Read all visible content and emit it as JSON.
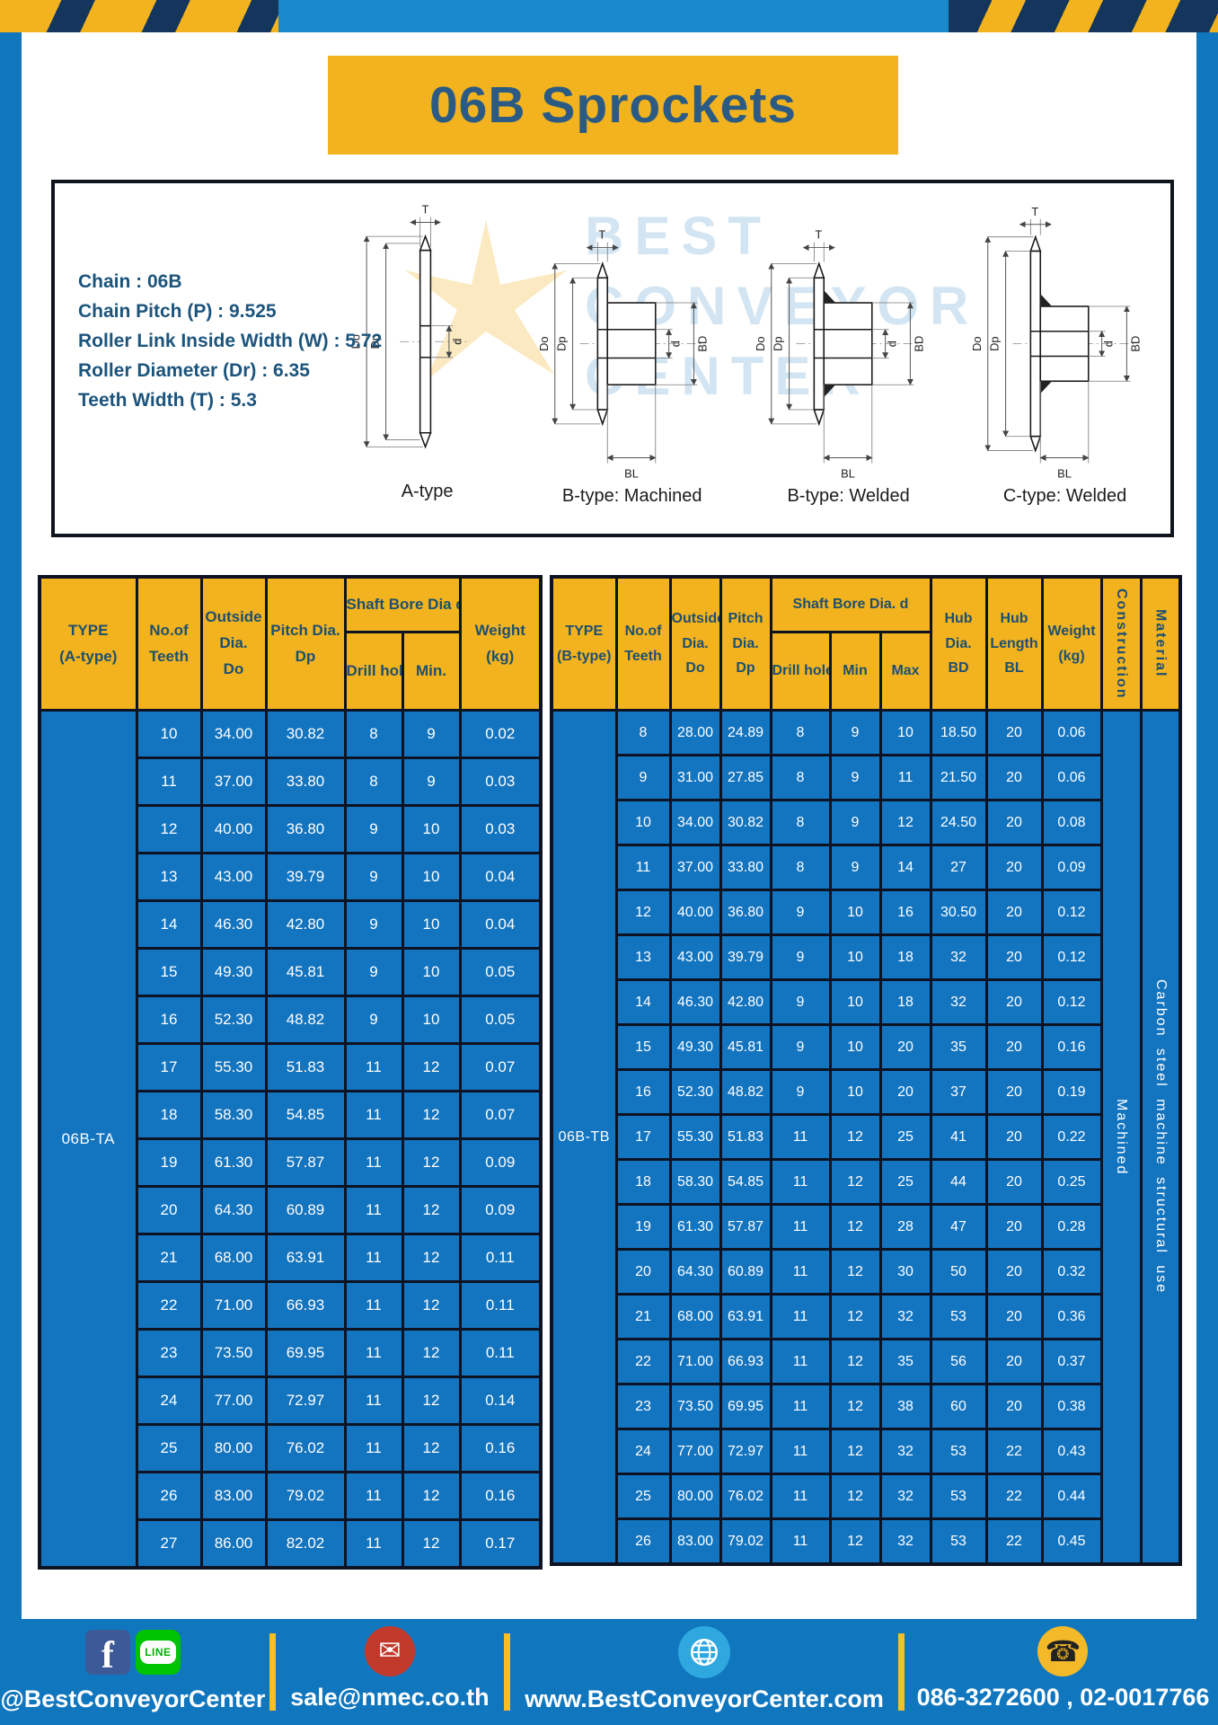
{
  "banner": {
    "title": "06B Sprockets"
  },
  "specs": {
    "lines": [
      "Chain  : 06B",
      "Chain Pitch (P)  :  9.525",
      "Roller Link Inside Width (W)  :  5.72",
      "Roller Diameter (Dr)  :  6.35",
      "Teeth Width (T)  :  5.3"
    ]
  },
  "drawings": {
    "captions": [
      "A-type",
      "B-type: Machined",
      "B-type: Welded",
      "C-type: Welded"
    ],
    "dims": {
      "t": "T",
      "do": "Do",
      "dp": "Dp",
      "d": "d",
      "bd": "BD",
      "bl": "BL"
    },
    "watermark_lines": [
      "BEST",
      "CONVEYOR",
      "CENTER"
    ]
  },
  "table_a": {
    "type_label": "06B-TA",
    "header": {
      "type": [
        "TYPE",
        "(A-type)"
      ],
      "teeth": [
        "No.of",
        "Teeth"
      ],
      "outside": [
        "Outside",
        "Dia.",
        "Do"
      ],
      "pitch": [
        "Pitch Dia.",
        "Dp"
      ],
      "bore_group": "Shaft Bore Dia d",
      "bore_cols": [
        "Drill hole",
        "Min."
      ],
      "weight": [
        "Weight",
        "(kg)"
      ]
    },
    "rows": [
      [
        "10",
        "34.00",
        "30.82",
        "8",
        "9",
        "0.02"
      ],
      [
        "11",
        "37.00",
        "33.80",
        "8",
        "9",
        "0.03"
      ],
      [
        "12",
        "40.00",
        "36.80",
        "9",
        "10",
        "0.03"
      ],
      [
        "13",
        "43.00",
        "39.79",
        "9",
        "10",
        "0.04"
      ],
      [
        "14",
        "46.30",
        "42.80",
        "9",
        "10",
        "0.04"
      ],
      [
        "15",
        "49.30",
        "45.81",
        "9",
        "10",
        "0.05"
      ],
      [
        "16",
        "52.30",
        "48.82",
        "9",
        "10",
        "0.05"
      ],
      [
        "17",
        "55.30",
        "51.83",
        "11",
        "12",
        "0.07"
      ],
      [
        "18",
        "58.30",
        "54.85",
        "11",
        "12",
        "0.07"
      ],
      [
        "19",
        "61.30",
        "57.87",
        "11",
        "12",
        "0.09"
      ],
      [
        "20",
        "64.30",
        "60.89",
        "11",
        "12",
        "0.09"
      ],
      [
        "21",
        "68.00",
        "63.91",
        "11",
        "12",
        "0.11"
      ],
      [
        "22",
        "71.00",
        "66.93",
        "11",
        "12",
        "0.11"
      ],
      [
        "23",
        "73.50",
        "69.95",
        "11",
        "12",
        "0.11"
      ],
      [
        "24",
        "77.00",
        "72.97",
        "11",
        "12",
        "0.14"
      ],
      [
        "25",
        "80.00",
        "76.02",
        "11",
        "12",
        "0.16"
      ],
      [
        "26",
        "83.00",
        "79.02",
        "11",
        "12",
        "0.16"
      ],
      [
        "27",
        "86.00",
        "82.02",
        "11",
        "12",
        "0.17"
      ]
    ]
  },
  "table_b": {
    "type_label": "06B-TB",
    "header": {
      "type": [
        "TYPE",
        "(B-type)"
      ],
      "teeth": [
        "No.of",
        "Teeth"
      ],
      "outside": [
        "Outside",
        "Dia.",
        "Do"
      ],
      "pitch": [
        "Pitch",
        "Dia.",
        "Dp"
      ],
      "bore_group": "Shaft Bore Dia.  d",
      "bore_cols": [
        "Drill hole",
        "Min",
        "Max"
      ],
      "hub_dia": [
        "Hub",
        "Dia.",
        "BD"
      ],
      "hub_len": [
        "Hub",
        "Length",
        "BL"
      ],
      "weight": [
        "Weight",
        "(kg)"
      ],
      "construction": "Construction",
      "material": "Material"
    },
    "rows": [
      [
        "8",
        "28.00",
        "24.89",
        "8",
        "9",
        "10",
        "18.50",
        "20",
        "0.06"
      ],
      [
        "9",
        "31.00",
        "27.85",
        "8",
        "9",
        "11",
        "21.50",
        "20",
        "0.06"
      ],
      [
        "10",
        "34.00",
        "30.82",
        "8",
        "9",
        "12",
        "24.50",
        "20",
        "0.08"
      ],
      [
        "11",
        "37.00",
        "33.80",
        "8",
        "9",
        "14",
        "27",
        "20",
        "0.09"
      ],
      [
        "12",
        "40.00",
        "36.80",
        "9",
        "10",
        "16",
        "30.50",
        "20",
        "0.12"
      ],
      [
        "13",
        "43.00",
        "39.79",
        "9",
        "10",
        "18",
        "32",
        "20",
        "0.12"
      ],
      [
        "14",
        "46.30",
        "42.80",
        "9",
        "10",
        "18",
        "32",
        "20",
        "0.12"
      ],
      [
        "15",
        "49.30",
        "45.81",
        "9",
        "10",
        "20",
        "35",
        "20",
        "0.16"
      ],
      [
        "16",
        "52.30",
        "48.82",
        "9",
        "10",
        "20",
        "37",
        "20",
        "0.19"
      ],
      [
        "17",
        "55.30",
        "51.83",
        "11",
        "12",
        "25",
        "41",
        "20",
        "0.22"
      ],
      [
        "18",
        "58.30",
        "54.85",
        "11",
        "12",
        "25",
        "44",
        "20",
        "0.25"
      ],
      [
        "19",
        "61.30",
        "57.87",
        "11",
        "12",
        "28",
        "47",
        "20",
        "0.28"
      ],
      [
        "20",
        "64.30",
        "60.89",
        "11",
        "12",
        "30",
        "50",
        "20",
        "0.32"
      ],
      [
        "21",
        "68.00",
        "63.91",
        "11",
        "12",
        "32",
        "53",
        "20",
        "0.36"
      ],
      [
        "22",
        "71.00",
        "66.93",
        "11",
        "12",
        "35",
        "56",
        "20",
        "0.37"
      ],
      [
        "23",
        "73.50",
        "69.95",
        "11",
        "12",
        "38",
        "60",
        "20",
        "0.38"
      ],
      [
        "24",
        "77.00",
        "72.97",
        "11",
        "12",
        "32",
        "53",
        "22",
        "0.43"
      ],
      [
        "25",
        "80.00",
        "76.02",
        "11",
        "12",
        "32",
        "53",
        "22",
        "0.44"
      ],
      [
        "26",
        "83.00",
        "79.02",
        "11",
        "12",
        "32",
        "53",
        "22",
        "0.45"
      ]
    ],
    "construction_value": "Machined",
    "material_value": "Carbon  steel  machine  structural  use"
  },
  "footer": {
    "social_label": "@BestConveyorCenter",
    "email_label": "sale@nmec.co.th",
    "website_label": "www.BestConveyorCenter.com",
    "phone_label": "086-3272600 , 02-0017766",
    "icons": {
      "facebook": "f",
      "line_text": "LINE",
      "email": "✉",
      "phone": "☎"
    }
  },
  "colors": {
    "page_blue": "#1076BE",
    "table_blue": "#1374BF",
    "yellow": "#F2B31F",
    "navy_text": "#1E4F6E",
    "border": "#0D1322"
  }
}
